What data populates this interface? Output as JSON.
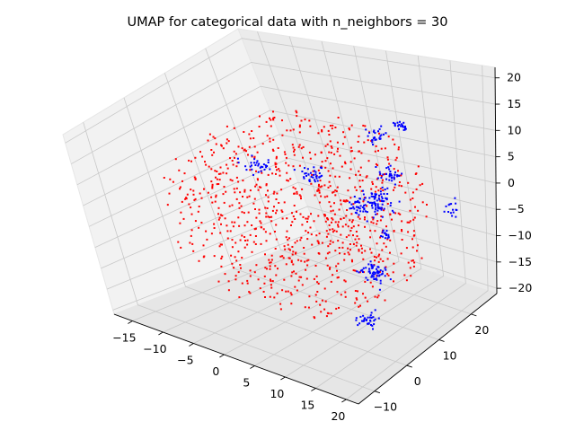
{
  "chart_data": {
    "type": "scatter",
    "projection": "3d",
    "title": "UMAP for categorical data with n_neighbors = 30",
    "xlabel": "",
    "ylabel": "",
    "zlabel": "",
    "xlim": [
      -18,
      22
    ],
    "ylim": [
      -15,
      28
    ],
    "zlim": [
      -21,
      22
    ],
    "xticks": [
      -15,
      -10,
      -5,
      0,
      5,
      10,
      15,
      20
    ],
    "yticks": [
      -10,
      0,
      10,
      20
    ],
    "zticks": [
      -20,
      -15,
      -10,
      -5,
      0,
      5,
      10,
      15,
      20
    ],
    "grid": true,
    "legend": "none",
    "series": [
      {
        "color": "#ff0000",
        "marker": "point",
        "distribution": "roughly spherical cloud",
        "center": [
          2,
          6,
          0
        ],
        "radius": 19,
        "count": 900
      },
      {
        "color": "#0000ff",
        "marker": "point",
        "distribution": "tight clusters",
        "clusters": [
          {
            "center": [
              1,
              -2,
              14
            ],
            "spread": 0.8,
            "count": 30
          },
          {
            "center": [
              13,
              10,
              17
            ],
            "spread": 0.7,
            "count": 25
          },
          {
            "center": [
              6,
              4,
              10
            ],
            "spread": 0.8,
            "count": 35
          },
          {
            "center": [
              12,
              14,
              6
            ],
            "spread": 0.8,
            "count": 35
          },
          {
            "center": [
              12,
              10,
              3
            ],
            "spread": 1.2,
            "count": 80
          },
          {
            "center": [
              10,
              8,
              3
            ],
            "spread": 0.7,
            "count": 25
          },
          {
            "center": [
              13,
              10,
              -3
            ],
            "spread": 0.6,
            "count": 15
          },
          {
            "center": [
              12,
              8,
              -10
            ],
            "spread": 1.0,
            "count": 60
          },
          {
            "center": [
              12,
              5,
              -18
            ],
            "spread": 0.8,
            "count": 35
          },
          {
            "center": [
              20,
              18,
              0
            ],
            "spread": 0.6,
            "count": 15
          },
          {
            "center": [
              12,
              18,
              14
            ],
            "spread": 0.6,
            "count": 20
          }
        ]
      }
    ]
  }
}
